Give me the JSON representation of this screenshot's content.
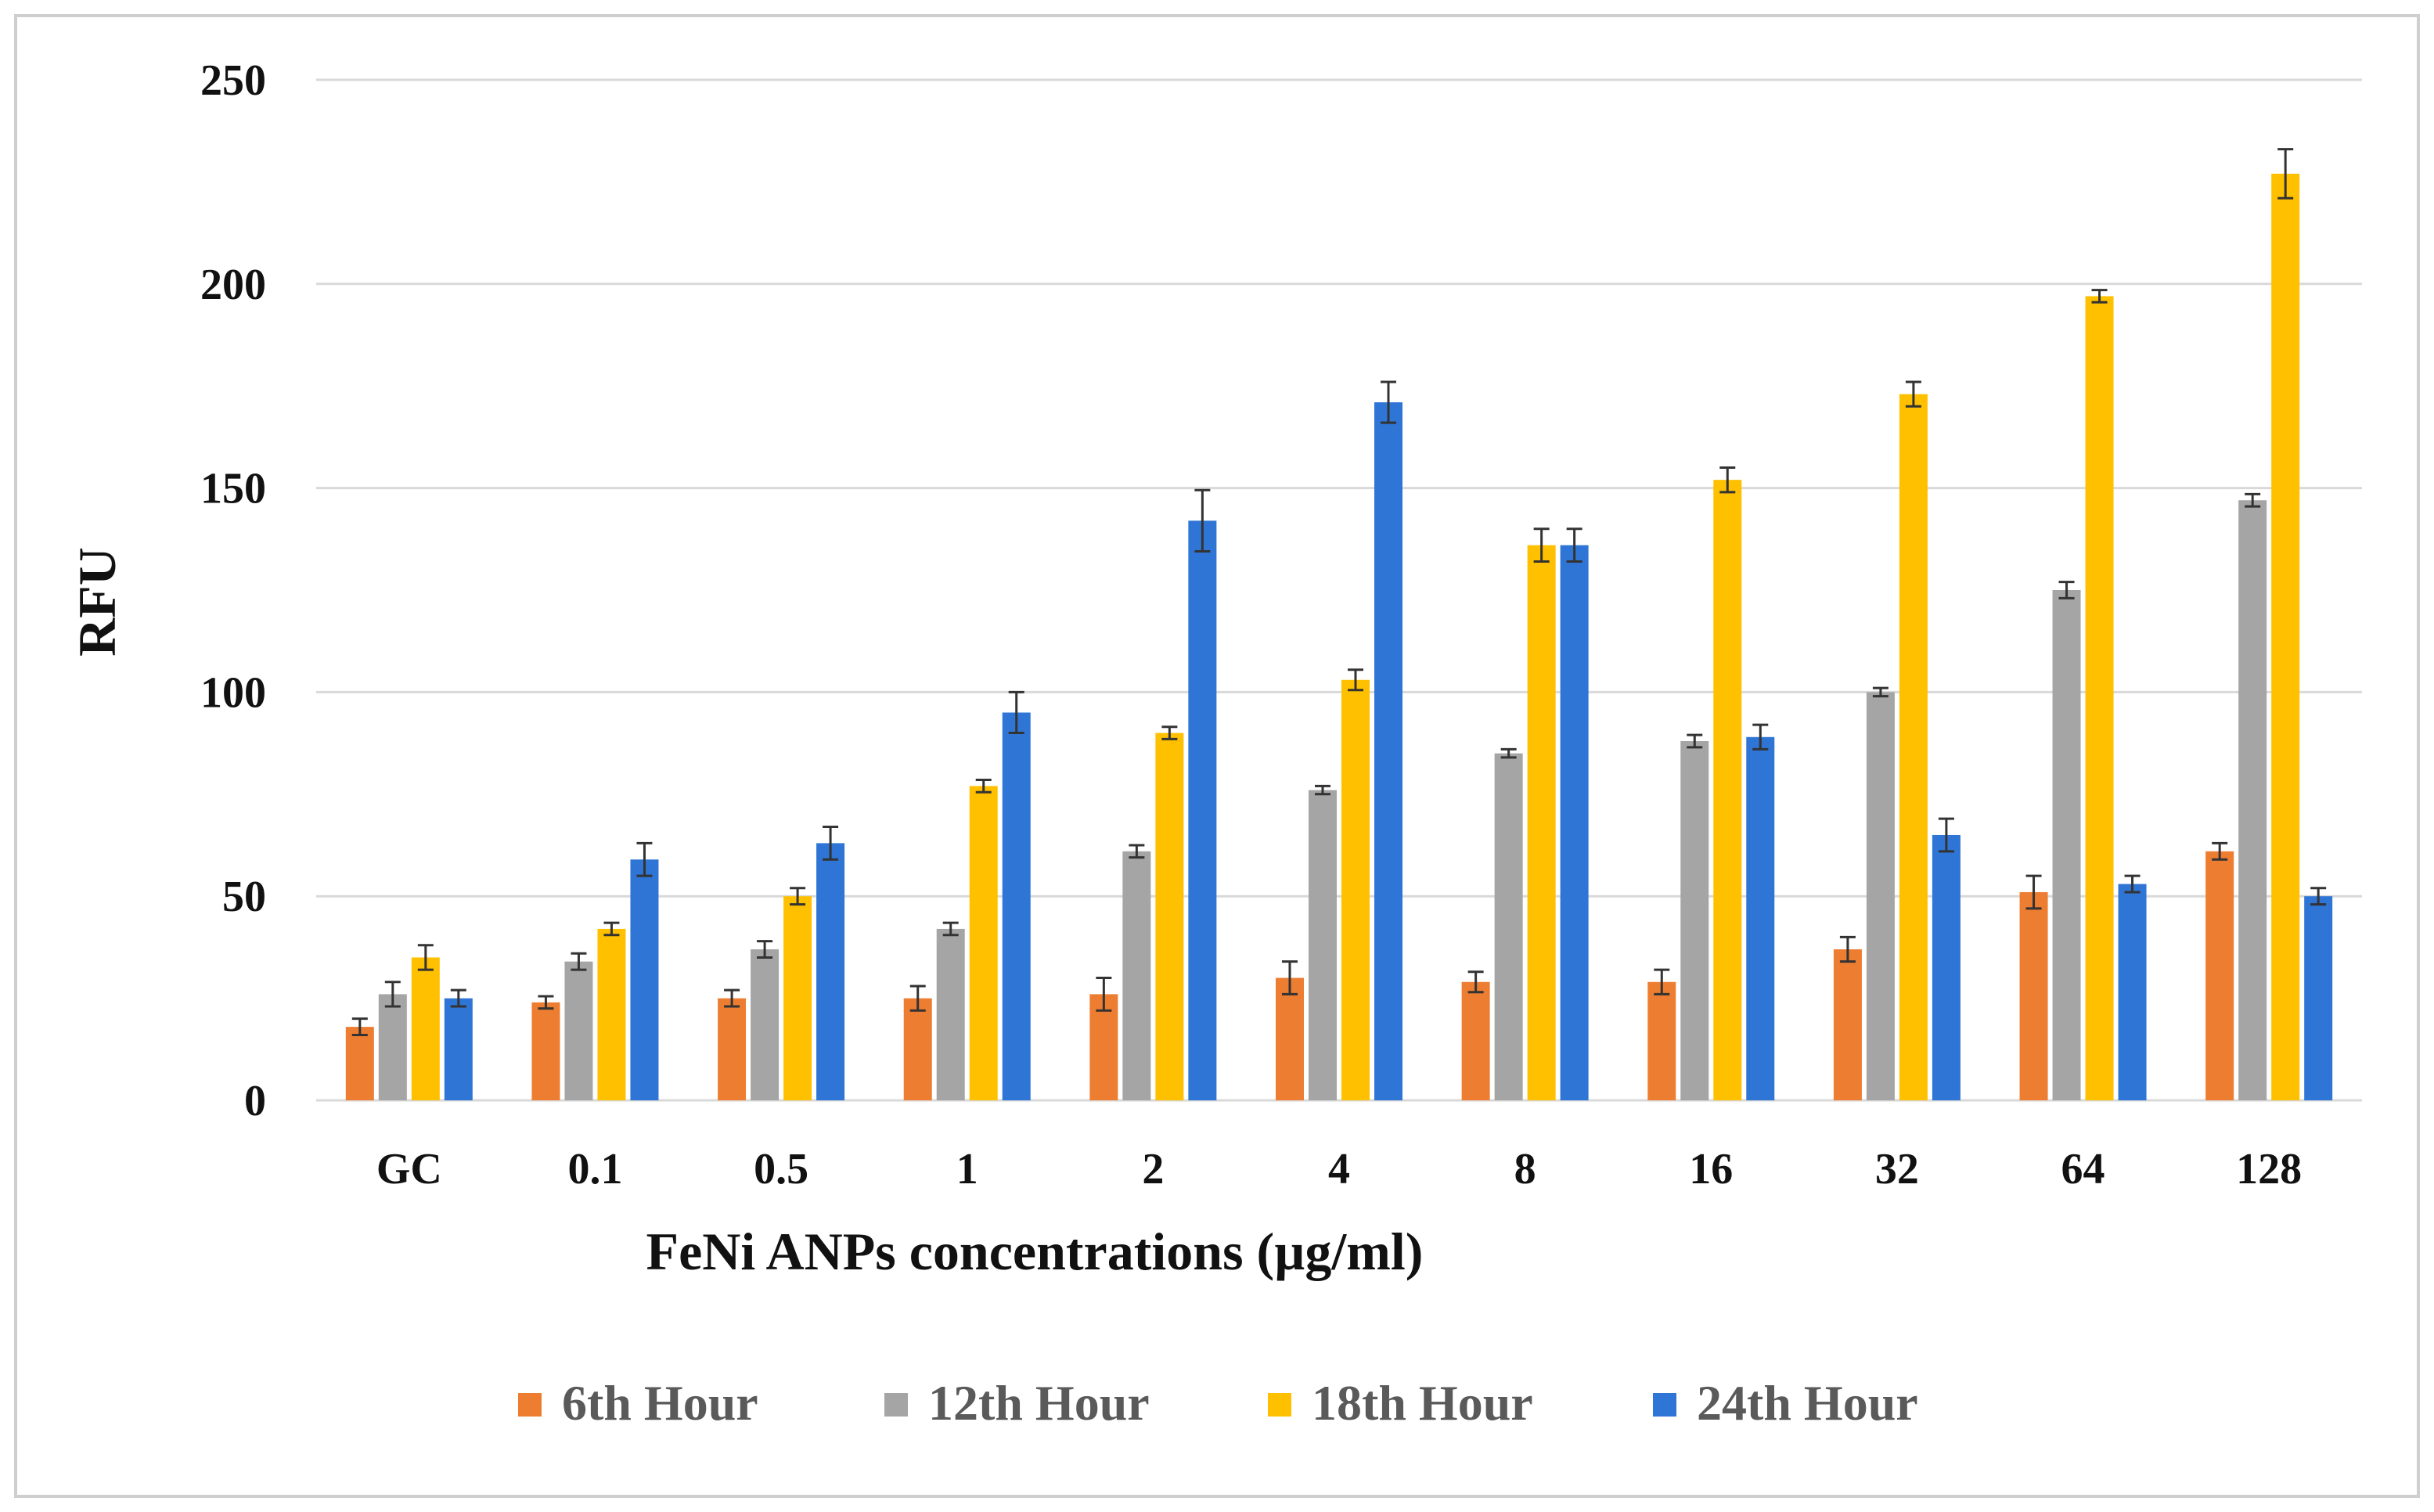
{
  "chart_data": {
    "type": "bar",
    "title": "",
    "xlabel": "FeNi ANPs concentrations  (µg/ml)",
    "ylabel": "RFU",
    "ylim": [
      0,
      250
    ],
    "yticks": [
      0,
      50,
      100,
      150,
      200,
      250
    ],
    "grid": true,
    "legend_position": "bottom",
    "categories": [
      "GC",
      "0.1",
      "0.5",
      "1",
      "2",
      "4",
      "8",
      "16",
      "32",
      "64",
      "128"
    ],
    "series": [
      {
        "name": "6th Hour",
        "color": "#ED7D31",
        "values": [
          18,
          24,
          25,
          25,
          26,
          30,
          29,
          29,
          37,
          51,
          61
        ],
        "errors": [
          2,
          1.5,
          2,
          3,
          4,
          4,
          2.5,
          3,
          3,
          4,
          2
        ]
      },
      {
        "name": "12th Hour",
        "color": "#A5A5A5",
        "values": [
          26,
          34,
          37,
          42,
          61,
          76,
          85,
          88,
          100,
          125,
          147
        ],
        "errors": [
          3,
          2,
          2,
          1.5,
          1.5,
          1,
          1,
          1.5,
          1,
          2,
          1.5
        ]
      },
      {
        "name": "18th Hour",
        "color": "#FFC000",
        "values": [
          35,
          42,
          50,
          77,
          90,
          103,
          136,
          152,
          173,
          197,
          227
        ],
        "errors": [
          3,
          1.5,
          2,
          1.5,
          1.5,
          2.5,
          4,
          3,
          3,
          1.5,
          6
        ]
      },
      {
        "name": "24th Hour",
        "color": "#2E75D5",
        "values": [
          25,
          59,
          63,
          95,
          142,
          171,
          136,
          89,
          65,
          53,
          50
        ],
        "errors": [
          2,
          4,
          4,
          5,
          7.5,
          5,
          4,
          3,
          4,
          2,
          2
        ]
      }
    ]
  }
}
